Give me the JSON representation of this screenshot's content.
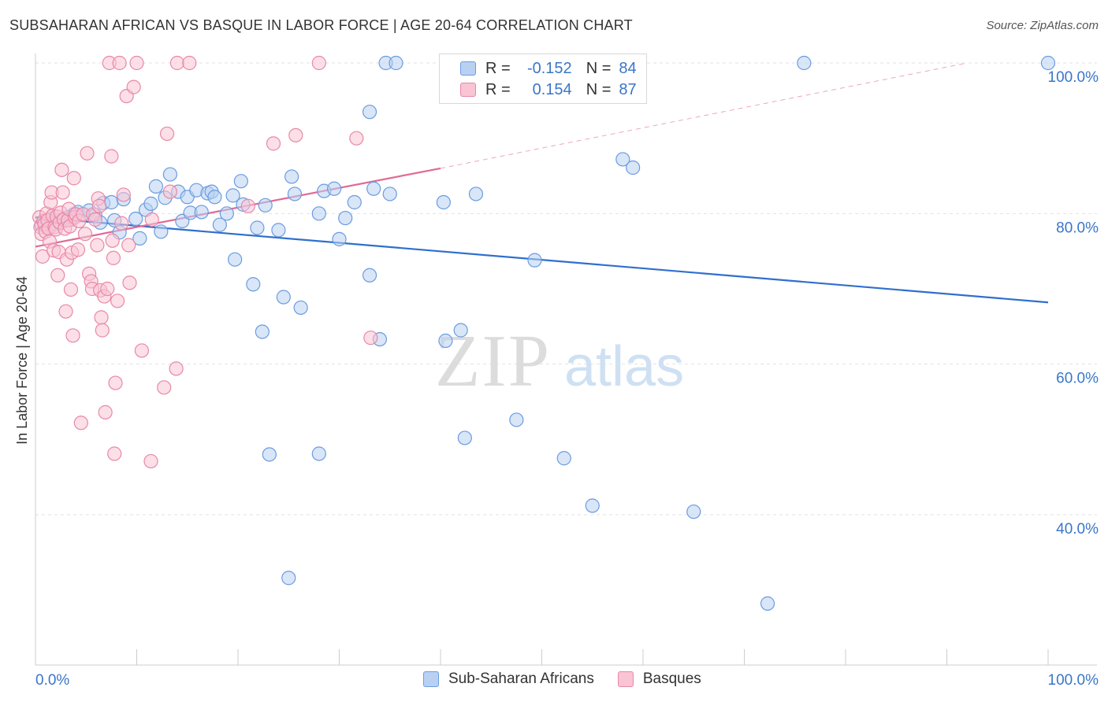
{
  "title": "SUBSAHARAN AFRICAN VS BASQUE IN LABOR FORCE | AGE 20-64 CORRELATION CHART",
  "source": "Source: ZipAtlas.com",
  "watermark": {
    "zip": "ZIP",
    "atlas": "atlas"
  },
  "legend": {
    "r_label": "R =",
    "n_label": "N =",
    "rows": [
      {
        "r": "-0.152",
        "n": "84",
        "fill": "#b8d1f3",
        "stroke": "#6b9be0"
      },
      {
        "r": "0.154",
        "n": "87",
        "fill": "#f9c4d4",
        "stroke": "#e888a8"
      }
    ]
  },
  "bottom_legend": [
    {
      "label": "Sub-Saharan Africans",
      "fill": "#b8d1f3",
      "stroke": "#6b9be0"
    },
    {
      "label": "Basques",
      "fill": "#f9c4d4",
      "stroke": "#e888a8"
    }
  ],
  "chart_data": {
    "type": "scatter",
    "title": "SUBSAHARAN AFRICAN VS BASQUE IN LABOR FORCE | AGE 20-64 CORRELATION CHART",
    "xlabel": "",
    "ylabel": "In Labor Force | Age 20-64",
    "x_tick_labels": [
      "0.0%",
      "100.0%"
    ],
    "y_tick_labels": [
      "100.0%",
      "80.0%",
      "60.0%",
      "40.0%"
    ],
    "y_ticks": [
      100,
      80,
      60,
      40
    ],
    "xlim": [
      0,
      100
    ],
    "ylim": [
      20,
      100
    ],
    "grid": true,
    "legend_position": "top-center",
    "series": [
      {
        "name": "Sub-Saharan Africans",
        "color": "#6b9be0",
        "fill": "#b8d1f3",
        "trend": {
          "x": [
            0,
            100
          ],
          "y": [
            79.5,
            68.2
          ],
          "line_color": "#2f6fce",
          "extend_dashed": false
        },
        "points": [
          [
            0.6,
            78.5
          ],
          [
            0.9,
            78.6
          ],
          [
            1.1,
            79.0
          ],
          [
            1.3,
            78.2
          ],
          [
            1.5,
            79.3
          ],
          [
            1.7,
            78.8
          ],
          [
            1.9,
            78.6
          ],
          [
            2.1,
            79.1
          ],
          [
            2.3,
            78.9
          ],
          [
            2.5,
            78.8
          ],
          [
            2.7,
            79.2
          ],
          [
            3.0,
            79.4
          ],
          [
            3.2,
            79.5
          ],
          [
            3.5,
            79.2
          ],
          [
            3.8,
            79.9
          ],
          [
            4.2,
            80.2
          ],
          [
            4.7,
            79.9
          ],
          [
            5.3,
            80.4
          ],
          [
            5.9,
            79.8
          ],
          [
            6.4,
            78.8
          ],
          [
            6.7,
            81.4
          ],
          [
            7.5,
            81.5
          ],
          [
            7.8,
            79.1
          ],
          [
            8.3,
            77.5
          ],
          [
            8.7,
            81.9
          ],
          [
            9.9,
            79.3
          ],
          [
            10.3,
            76.7
          ],
          [
            10.9,
            80.5
          ],
          [
            11.4,
            81.3
          ],
          [
            11.9,
            83.6
          ],
          [
            12.4,
            77.6
          ],
          [
            12.8,
            82.1
          ],
          [
            13.3,
            85.2
          ],
          [
            14.1,
            82.9
          ],
          [
            14.5,
            79.0
          ],
          [
            15.0,
            82.2
          ],
          [
            15.3,
            80.1
          ],
          [
            15.9,
            83.1
          ],
          [
            16.4,
            80.2
          ],
          [
            17.0,
            82.7
          ],
          [
            17.4,
            82.9
          ],
          [
            17.7,
            82.2
          ],
          [
            18.2,
            78.5
          ],
          [
            18.9,
            80.0
          ],
          [
            19.5,
            82.4
          ],
          [
            19.7,
            73.9
          ],
          [
            20.3,
            84.3
          ],
          [
            20.5,
            81.2
          ],
          [
            21.5,
            70.6
          ],
          [
            21.9,
            78.1
          ],
          [
            22.4,
            64.3
          ],
          [
            22.7,
            81.1
          ],
          [
            23.1,
            48.0
          ],
          [
            24.0,
            77.8
          ],
          [
            24.5,
            68.9
          ],
          [
            25.0,
            31.6
          ],
          [
            25.3,
            84.9
          ],
          [
            25.6,
            82.6
          ],
          [
            26.2,
            67.5
          ],
          [
            28.0,
            80.0
          ],
          [
            28.0,
            48.1
          ],
          [
            28.5,
            83.0
          ],
          [
            29.5,
            83.3
          ],
          [
            30.0,
            76.6
          ],
          [
            30.6,
            79.4
          ],
          [
            31.5,
            81.5
          ],
          [
            33.0,
            93.5
          ],
          [
            33.0,
            71.8
          ],
          [
            33.4,
            83.3
          ],
          [
            34.0,
            63.3
          ],
          [
            34.6,
            100.0
          ],
          [
            35.0,
            82.6
          ],
          [
            35.6,
            100.0
          ],
          [
            40.3,
            81.5
          ],
          [
            40.5,
            63.1
          ],
          [
            42.0,
            64.5
          ],
          [
            42.4,
            50.2
          ],
          [
            43.5,
            82.6
          ],
          [
            47.5,
            52.6
          ],
          [
            49.3,
            73.8
          ],
          [
            52.2,
            47.5
          ],
          [
            55.0,
            41.2
          ],
          [
            58.0,
            87.2
          ],
          [
            59.0,
            86.1
          ],
          [
            65.0,
            40.4
          ],
          [
            72.3,
            28.2
          ],
          [
            75.9,
            100.0
          ],
          [
            100.0,
            100.0
          ]
        ]
      },
      {
        "name": "Basques",
        "color": "#e888a8",
        "fill": "#f9c4d4",
        "trend": {
          "x": [
            0,
            40
          ],
          "y": [
            75.6,
            86.0
          ],
          "dashed_to": [
            92,
            100
          ],
          "line_color": "#e06a95",
          "extend_dashed": true
        },
        "points": [
          [
            0.4,
            79.5
          ],
          [
            0.5,
            78.2
          ],
          [
            0.6,
            77.3
          ],
          [
            0.7,
            74.3
          ],
          [
            0.8,
            79.0
          ],
          [
            0.9,
            78.6
          ],
          [
            1.0,
            77.6
          ],
          [
            1.1,
            80.0
          ],
          [
            1.2,
            79.1
          ],
          [
            1.3,
            78.0
          ],
          [
            1.4,
            76.3
          ],
          [
            1.5,
            81.5
          ],
          [
            1.6,
            82.8
          ],
          [
            1.7,
            79.7
          ],
          [
            1.8,
            75.1
          ],
          [
            1.9,
            78.2
          ],
          [
            2.0,
            77.9
          ],
          [
            2.1,
            79.6
          ],
          [
            2.2,
            71.8
          ],
          [
            2.3,
            74.9
          ],
          [
            2.4,
            78.8
          ],
          [
            2.5,
            80.1
          ],
          [
            2.6,
            85.8
          ],
          [
            2.7,
            82.8
          ],
          [
            2.8,
            79.2
          ],
          [
            2.9,
            78.0
          ],
          [
            3.0,
            67.0
          ],
          [
            3.1,
            73.9
          ],
          [
            3.2,
            79.1
          ],
          [
            3.3,
            80.6
          ],
          [
            3.4,
            78.3
          ],
          [
            3.5,
            69.9
          ],
          [
            3.6,
            74.8
          ],
          [
            3.7,
            63.8
          ],
          [
            3.8,
            84.7
          ],
          [
            3.9,
            79.5
          ],
          [
            4.0,
            79.9
          ],
          [
            4.2,
            75.2
          ],
          [
            4.3,
            79.0
          ],
          [
            4.5,
            52.2
          ],
          [
            4.7,
            79.9
          ],
          [
            4.9,
            77.3
          ],
          [
            5.1,
            88.0
          ],
          [
            5.3,
            72.0
          ],
          [
            5.5,
            71.0
          ],
          [
            5.6,
            70.0
          ],
          [
            5.7,
            79.9
          ],
          [
            5.9,
            79.2
          ],
          [
            6.1,
            75.8
          ],
          [
            6.2,
            82.0
          ],
          [
            6.3,
            81.0
          ],
          [
            6.4,
            69.8
          ],
          [
            6.5,
            66.2
          ],
          [
            6.6,
            64.5
          ],
          [
            6.8,
            69.0
          ],
          [
            6.9,
            53.6
          ],
          [
            7.1,
            70.0
          ],
          [
            7.3,
            100.0
          ],
          [
            7.5,
            87.6
          ],
          [
            7.6,
            76.4
          ],
          [
            7.7,
            74.1
          ],
          [
            7.8,
            48.1
          ],
          [
            7.9,
            57.5
          ],
          [
            8.1,
            68.4
          ],
          [
            8.3,
            100.0
          ],
          [
            8.5,
            78.7
          ],
          [
            8.7,
            82.5
          ],
          [
            9.0,
            95.6
          ],
          [
            9.2,
            75.8
          ],
          [
            9.3,
            70.8
          ],
          [
            9.7,
            96.8
          ],
          [
            10.0,
            100.0
          ],
          [
            10.5,
            61.8
          ],
          [
            11.4,
            47.1
          ],
          [
            11.5,
            79.2
          ],
          [
            12.7,
            56.9
          ],
          [
            13.0,
            90.6
          ],
          [
            13.3,
            82.9
          ],
          [
            13.9,
            59.4
          ],
          [
            14.0,
            100.0
          ],
          [
            15.2,
            100.0
          ],
          [
            21.0,
            81.0
          ],
          [
            23.5,
            89.3
          ],
          [
            25.7,
            90.4
          ],
          [
            28.0,
            100.0
          ],
          [
            31.7,
            90.0
          ],
          [
            33.1,
            63.5
          ]
        ]
      }
    ]
  }
}
